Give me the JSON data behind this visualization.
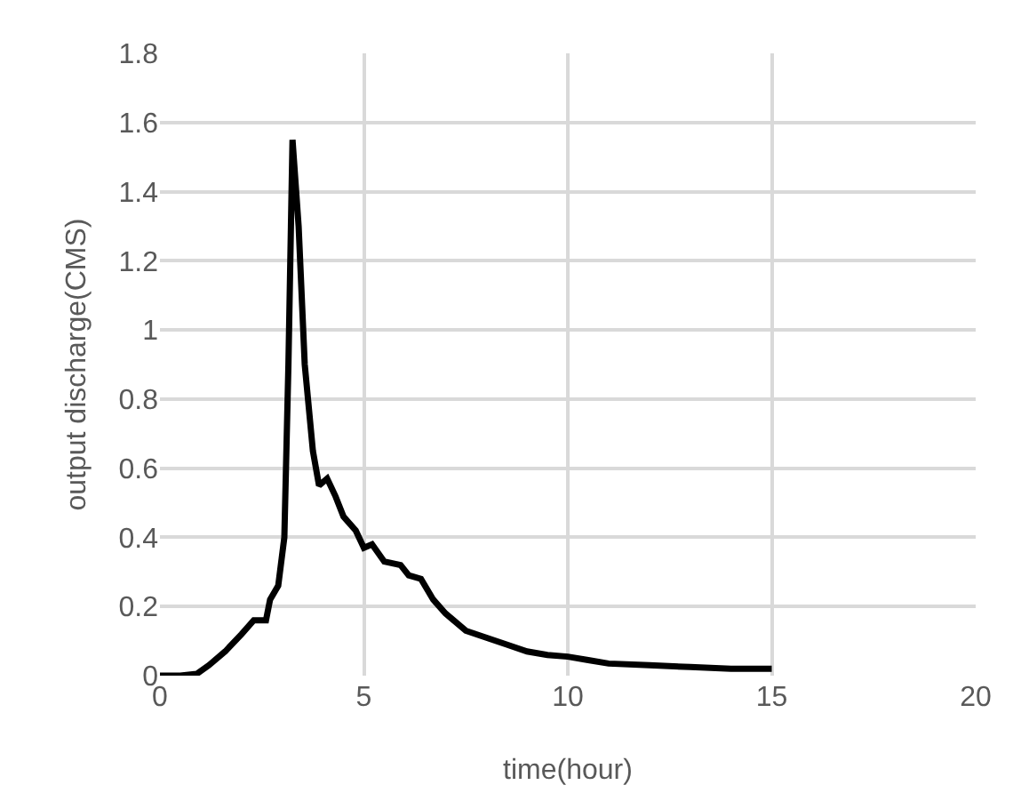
{
  "chart_data": {
    "type": "line",
    "xlabel": "time(hour)",
    "ylabel": "output discharge(CMS)",
    "x": [
      0,
      0.5,
      0.9,
      1.2,
      1.6,
      2,
      2.3,
      2.6,
      2.7,
      2.9,
      3.05,
      3.15,
      3.25,
      3.4,
      3.55,
      3.75,
      3.9,
      4.1,
      4.3,
      4.5,
      4.8,
      5,
      5.2,
      5.5,
      5.9,
      6.1,
      6.4,
      6.7,
      7,
      7.5,
      8,
      8.5,
      9,
      9.5,
      10,
      10.5,
      11,
      12,
      13,
      14,
      15
    ],
    "series": [
      {
        "color": "#000000",
        "values": [
          0,
          0,
          0.005,
          0.03,
          0.07,
          0.12,
          0.16,
          0.16,
          0.22,
          0.26,
          0.4,
          0.9,
          1.55,
          1.3,
          0.9,
          0.65,
          0.55,
          0.57,
          0.52,
          0.46,
          0.42,
          0.37,
          0.38,
          0.33,
          0.32,
          0.29,
          0.28,
          0.22,
          0.18,
          0.13,
          0.11,
          0.09,
          0.07,
          0.06,
          0.055,
          0.045,
          0.035,
          0.03,
          0.025,
          0.02,
          0.02
        ]
      }
    ],
    "xlim": [
      0,
      20
    ],
    "xticks": [
      0,
      5,
      10,
      15,
      20
    ],
    "ylim": [
      0,
      1.8
    ],
    "yticks": [
      0,
      0.2,
      0.4,
      0.6,
      0.8,
      1,
      1.2,
      1.4,
      1.6,
      1.8
    ],
    "grid": true,
    "legend": false,
    "marker": "none",
    "line_style": "solid"
  }
}
